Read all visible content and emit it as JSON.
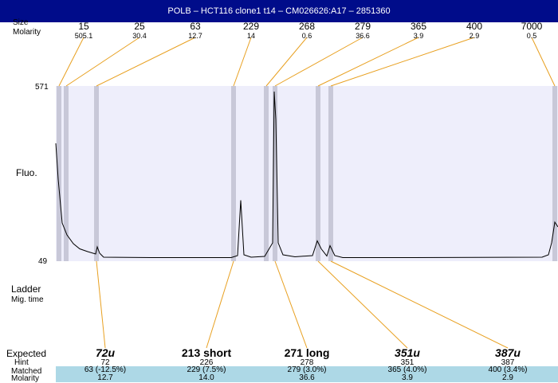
{
  "title": "POLB – HCT116 clone1 t14 – CM026626:A17 – 2851360",
  "row_labels": {
    "size": "Size",
    "molarity": "Molarity",
    "fluo": "Fluo.",
    "ladder": "Ladder",
    "mig_time": "Mig. time",
    "expected": "Expected",
    "hint": "Hint",
    "matched": "Matched",
    "molarity_bottom": "Molarity"
  },
  "colors": {
    "title_bar": "#000c8a",
    "plot_bg": "#eeeefb",
    "band": "#c8c8d8",
    "connector": "#e8a020",
    "matched_band": "#add8e6"
  },
  "chart_data": {
    "type": "line",
    "ylim": [
      49,
      571
    ],
    "y_ticks": [
      "571",
      "49"
    ],
    "ladder": [
      {
        "size": "15",
        "molarity": "505.1"
      },
      {
        "size": "25",
        "molarity": "30.4"
      },
      {
        "size": "63",
        "molarity": "12.7"
      },
      {
        "size": "229",
        "molarity": "14"
      },
      {
        "size": "268",
        "molarity": "0.6"
      },
      {
        "size": "279",
        "molarity": "36.6"
      },
      {
        "size": "365",
        "molarity": "3.9"
      },
      {
        "size": "400",
        "molarity": "2.9"
      },
      {
        "size": "7000",
        "molarity": "0.5"
      }
    ],
    "peaks": [
      {
        "expected": "72u",
        "style": "italic",
        "hint": "72",
        "matched": "63 (-12.5%)",
        "molarity": "12.7"
      },
      {
        "expected": "213 short",
        "style": "bold",
        "hint": "226",
        "matched": "229 (7.5%)",
        "molarity": "14.0"
      },
      {
        "expected": "271 long",
        "style": "bold",
        "hint": "278",
        "matched": "279 (3.0%)",
        "molarity": "36.6"
      },
      {
        "expected": "351u",
        "style": "italic",
        "hint": "351",
        "matched": "365 (4.0%)",
        "molarity": "3.9"
      },
      {
        "expected": "387u",
        "style": "italic",
        "hint": "387",
        "matched": "400 (3.4%)",
        "molarity": "2.9"
      }
    ],
    "trace": [
      [
        0,
        290
      ],
      [
        3,
        200
      ],
      [
        8,
        90
      ],
      [
        14,
        60
      ],
      [
        22,
        38
      ],
      [
        30,
        25
      ],
      [
        40,
        18
      ],
      [
        50,
        12
      ],
      [
        52,
        30
      ],
      [
        55,
        14
      ],
      [
        60,
        4
      ],
      [
        120,
        3
      ],
      [
        220,
        3
      ],
      [
        228,
        8
      ],
      [
        232,
        147
      ],
      [
        236,
        10
      ],
      [
        245,
        4
      ],
      [
        262,
        6
      ],
      [
        272,
        40
      ],
      [
        274,
        420
      ],
      [
        276,
        350
      ],
      [
        279,
        40
      ],
      [
        285,
        10
      ],
      [
        300,
        5
      ],
      [
        322,
        8
      ],
      [
        328,
        45
      ],
      [
        333,
        25
      ],
      [
        340,
        7
      ],
      [
        344,
        33
      ],
      [
        350,
        8
      ],
      [
        360,
        3
      ],
      [
        450,
        3
      ],
      [
        610,
        4
      ],
      [
        618,
        10
      ],
      [
        622,
        40
      ],
      [
        626,
        92
      ],
      [
        630,
        80
      ]
    ]
  }
}
